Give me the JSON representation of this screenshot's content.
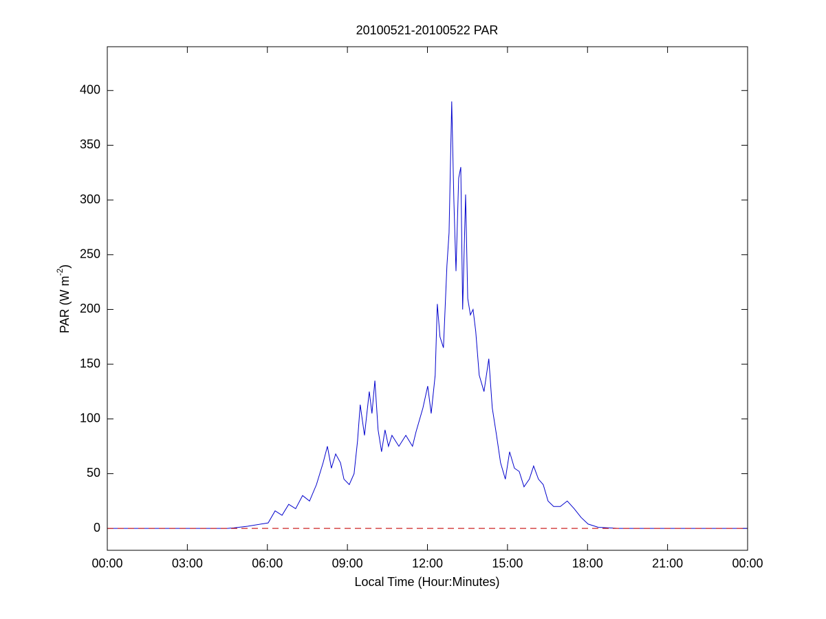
{
  "chart_data": {
    "type": "line",
    "title": "20100521-20100522 PAR",
    "xlabel": "Local Time (Hour:Minutes)",
    "ylabel": "PAR (W m",
    "ylabel_superscript": "-2",
    "ylabel_suffix": ")",
    "xlim": [
      0,
      24
    ],
    "ylim": [
      -20,
      440
    ],
    "xticks": [
      {
        "value": 0,
        "label": "00:00"
      },
      {
        "value": 3,
        "label": "03:00"
      },
      {
        "value": 6,
        "label": "06:00"
      },
      {
        "value": 9,
        "label": "09:00"
      },
      {
        "value": 12,
        "label": "12:00"
      },
      {
        "value": 15,
        "label": "15:00"
      },
      {
        "value": 18,
        "label": "18:00"
      },
      {
        "value": 21,
        "label": "21:00"
      },
      {
        "value": 24,
        "label": "00:00"
      }
    ],
    "yticks": [
      0,
      50,
      100,
      150,
      200,
      250,
      300,
      350,
      400
    ],
    "grid": false,
    "reference_line": {
      "value": 0,
      "color": "#cc2222",
      "dashed": true
    },
    "series": [
      {
        "color": "#0000cc",
        "x": [
          0,
          4.5,
          4.74,
          5.26,
          6.03,
          6.29,
          6.55,
          6.8,
          7.06,
          7.32,
          7.58,
          7.84,
          8.09,
          8.25,
          8.4,
          8.56,
          8.74,
          8.87,
          9.07,
          9.25,
          9.38,
          9.48,
          9.64,
          9.82,
          9.92,
          10.03,
          10.15,
          10.28,
          10.41,
          10.54,
          10.67,
          10.93,
          11.19,
          11.44,
          11.57,
          11.83,
          12.01,
          12.14,
          12.29,
          12.37,
          12.47,
          12.6,
          12.73,
          12.81,
          12.91,
          12.99,
          13.07,
          13.17,
          13.25,
          13.32,
          13.43,
          13.51,
          13.61,
          13.71,
          13.81,
          13.94,
          14.12,
          14.3,
          14.43,
          14.59,
          14.74,
          14.92,
          15.08,
          15.26,
          15.44,
          15.62,
          15.82,
          15.98,
          16.16,
          16.34,
          16.52,
          16.73,
          16.98,
          17.24,
          17.5,
          17.76,
          18.02,
          18.4,
          19.18,
          24
        ],
        "values": [
          0,
          0,
          0.5,
          2,
          5,
          16,
          12,
          22,
          18,
          30,
          25,
          40,
          60,
          75,
          55,
          68,
          60,
          45,
          40,
          50,
          80,
          113,
          85,
          125,
          105,
          135,
          90,
          70,
          90,
          75,
          85,
          75,
          85,
          75,
          88,
          110,
          130,
          105,
          140,
          205,
          175,
          165,
          240,
          270,
          390,
          300,
          235,
          320,
          330,
          200,
          305,
          210,
          195,
          200,
          180,
          140,
          125,
          155,
          110,
          85,
          60,
          45,
          70,
          55,
          52,
          38,
          45,
          57,
          45,
          40,
          25,
          20,
          20,
          25,
          18,
          10,
          4,
          1,
          0,
          0
        ]
      }
    ]
  }
}
